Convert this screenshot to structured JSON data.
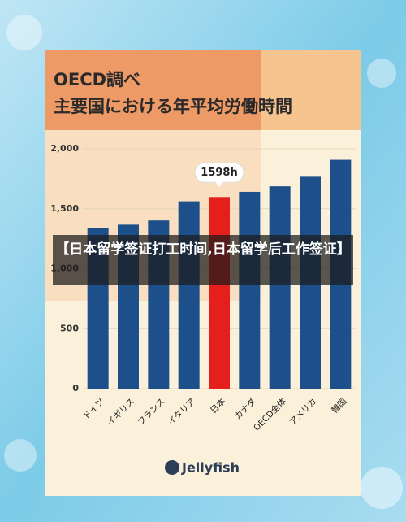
{
  "chart_data": {
    "type": "bar",
    "title": "OECD調べ",
    "subtitle": "主要国における年平均労働時間",
    "categories": [
      "ドイツ",
      "イギリス",
      "フランス",
      "イタリア",
      "日本",
      "カナダ",
      "OECD全体",
      "アメリカ",
      "韓国"
    ],
    "values": [
      1340,
      1367,
      1402,
      1562,
      1598,
      1641,
      1687,
      1767,
      1908
    ],
    "value_labels": [
      null,
      null,
      null,
      null,
      "1598h",
      null,
      null,
      null,
      null
    ],
    "colors": [
      "#1d4f8b",
      "#1d4f8b",
      "#1d4f8b",
      "#1d4f8b",
      "#e5201c",
      "#1d4f8b",
      "#1d4f8b",
      "#1d4f8b",
      "#1d4f8b"
    ],
    "ylim": [
      0,
      2000
    ],
    "yticks": [
      0,
      500,
      {
        "value": 1000,
        "label": "1,000"
      },
      {
        "value": 1500,
        "label": "1,500"
      },
      {
        "value": 2000,
        "label": "2,000"
      }
    ],
    "grid": true
  },
  "banner": "【日本留学签证打工时间,日本留学后工作签证】",
  "logo": "Jellyfish"
}
